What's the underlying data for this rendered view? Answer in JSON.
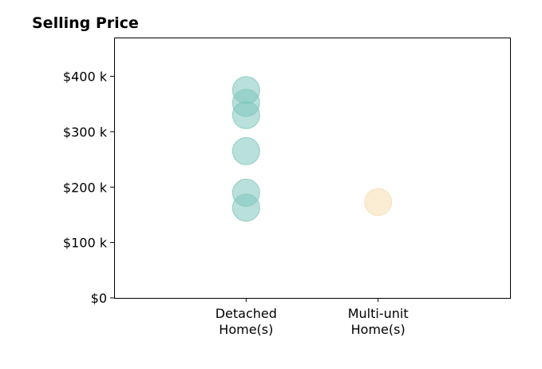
{
  "chart_data": {
    "type": "scatter",
    "title": "Selling Price",
    "xlabel": "",
    "ylabel": "",
    "categories": [
      "Detached\nHome(s)",
      "Multi-unit\nHome(s)"
    ],
    "yticks": [
      {
        "value": 0,
        "label": "$0"
      },
      {
        "value": 100000,
        "label": "$100 k"
      },
      {
        "value": 200000,
        "label": "$200 k"
      },
      {
        "value": 300000,
        "label": "$300 k"
      },
      {
        "value": 400000,
        "label": "$400 k"
      }
    ],
    "ylim": [
      0,
      470000
    ],
    "xlim": [
      -1,
      2
    ],
    "grid": false,
    "series": [
      {
        "category": "Detached\nHome(s)",
        "color": "#80c6bd",
        "values": [
          375000,
          352000,
          330000,
          265000,
          190000,
          163000
        ]
      },
      {
        "category": "Multi-unit\nHome(s)",
        "color": "#f5deb1",
        "values": [
          173000
        ]
      }
    ]
  }
}
